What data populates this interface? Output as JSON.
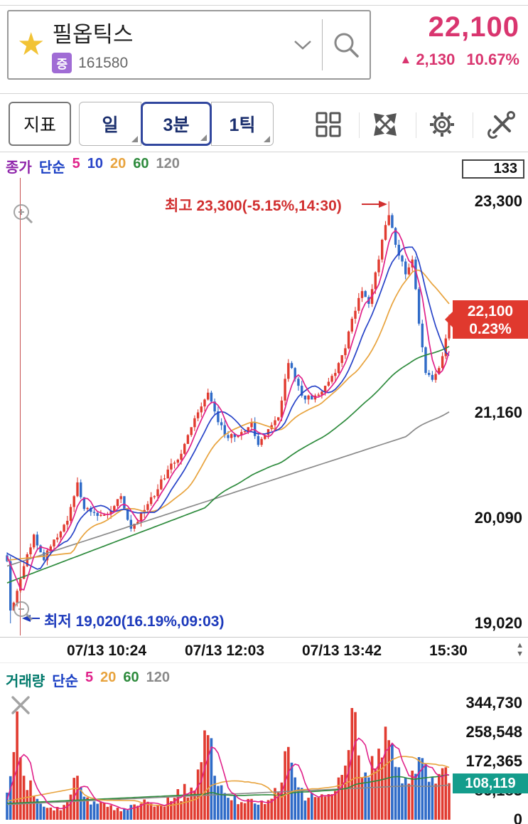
{
  "header": {
    "stock_name": "필옵틱스",
    "market_badge": "증",
    "stock_code": "161580",
    "price": "22,100",
    "change_arrow": "▲",
    "change_value": "2,130",
    "change_percent": "10.67%",
    "accent_color": "#d9356f"
  },
  "toolbar": {
    "indicator_button": "지표",
    "period_buttons": [
      {
        "label": "일",
        "selected": false
      },
      {
        "label": "3분",
        "selected": true
      },
      {
        "label": "1틱",
        "selected": false
      }
    ],
    "icons": [
      "grid-icon",
      "expand-icon",
      "gear-icon",
      "tools-icon"
    ]
  },
  "price_pane": {
    "legend": [
      {
        "text": "종가",
        "color": "#8e24aa"
      },
      {
        "text": "단순",
        "color": "#1a3fc4"
      },
      {
        "text": "5",
        "color": "#e0218a"
      },
      {
        "text": "10",
        "color": "#2743c8"
      },
      {
        "text": "20",
        "color": "#e8a33d"
      },
      {
        "text": "60",
        "color": "#2e8b3d"
      },
      {
        "text": "120",
        "color": "#8a8a8a"
      }
    ],
    "count_box": "133",
    "high_annotation": "최고 23,300(-5.15%,14:30)",
    "low_annotation": "최저 19,020(16.19%,09:03)",
    "high_color": "#d12f2f",
    "low_color": "#1c39bb",
    "axis_labels": [
      {
        "text": "23,300",
        "value": 23300
      },
      {
        "text": "21,160",
        "value": 21160
      },
      {
        "text": "20,090",
        "value": 20090
      },
      {
        "text": "19,020",
        "value": 19020
      }
    ],
    "current_badge": {
      "price": "22,100",
      "percent": "0.23%",
      "color": "#e0392e"
    }
  },
  "time_axis": {
    "labels": [
      "07/13 10:24",
      "07/13 12:03",
      "07/13 13:42",
      "15:30"
    ]
  },
  "volume_pane": {
    "legend": [
      {
        "text": "거래량",
        "color": "#00796b"
      },
      {
        "text": "단순",
        "color": "#1a3fc4"
      },
      {
        "text": "5",
        "color": "#e0218a"
      },
      {
        "text": "20",
        "color": "#e8a33d"
      },
      {
        "text": "60",
        "color": "#2e8b3d"
      },
      {
        "text": "120",
        "color": "#8a8a8a"
      }
    ],
    "axis_labels": [
      {
        "text": "344,730",
        "value": 344730
      },
      {
        "text": "258,548",
        "value": 258548
      },
      {
        "text": "172,365",
        "value": 172365
      },
      {
        "text": "86,183",
        "value": 86183
      },
      {
        "text": "0",
        "value": 0
      }
    ],
    "current_badge": {
      "value": "108,119",
      "color": "#149d8c"
    }
  },
  "chart_data": [
    {
      "type": "candlestick",
      "name": "필옵틱스 3분봉",
      "interval": "3분",
      "date": "07/13",
      "candle_count": 133,
      "y_max": 23300,
      "y_min": 19020,
      "y_ticks": [
        23300,
        21160,
        20090,
        19020
      ],
      "x_ticks": [
        "07/13 10:24",
        "07/13 12:03",
        "07/13 13:42",
        "15:30"
      ],
      "x_tick_indices": [
        28,
        61,
        94,
        130
      ],
      "current_price": 22100,
      "current_change_pct": 0.23,
      "session_high": {
        "price": 23300,
        "pct_vs_current": -5.15,
        "time": "14:30",
        "index": 114
      },
      "session_low": {
        "price": 19020,
        "pct_vs_current": 16.19,
        "time": "09:03",
        "index": 1
      },
      "up_color": "#e13b30",
      "down_color": "#2f6bc8",
      "close_anchors": [
        [
          0,
          19650
        ],
        [
          1,
          19150
        ],
        [
          3,
          19350
        ],
        [
          5,
          19600
        ],
        [
          8,
          19920
        ],
        [
          11,
          19660
        ],
        [
          14,
          19870
        ],
        [
          18,
          20060
        ],
        [
          21,
          20450
        ],
        [
          23,
          20180
        ],
        [
          27,
          20110
        ],
        [
          31,
          20160
        ],
        [
          34,
          20310
        ],
        [
          37,
          19980
        ],
        [
          41,
          20170
        ],
        [
          45,
          20380
        ],
        [
          48,
          20580
        ],
        [
          52,
          20740
        ],
        [
          55,
          21010
        ],
        [
          58,
          21220
        ],
        [
          60,
          21360
        ],
        [
          63,
          21060
        ],
        [
          66,
          20900
        ],
        [
          70,
          20960
        ],
        [
          73,
          21060
        ],
        [
          75,
          20830
        ],
        [
          78,
          20990
        ],
        [
          81,
          21110
        ],
        [
          84,
          21660
        ],
        [
          86,
          21500
        ],
        [
          88,
          21330
        ],
        [
          91,
          21290
        ],
        [
          95,
          21430
        ],
        [
          98,
          21560
        ],
        [
          101,
          21810
        ],
        [
          103,
          22110
        ],
        [
          106,
          22390
        ],
        [
          108,
          22260
        ],
        [
          111,
          22710
        ],
        [
          113,
          23060
        ],
        [
          114,
          23160
        ],
        [
          116,
          22860
        ],
        [
          119,
          22560
        ],
        [
          121,
          22710
        ],
        [
          123,
          22060
        ],
        [
          125,
          21560
        ],
        [
          127,
          21490
        ],
        [
          129,
          21610
        ],
        [
          131,
          21910
        ],
        [
          132,
          22100
        ]
      ],
      "ma": [
        {
          "period": 5,
          "color": "#e0218a",
          "left_start": 19700
        },
        {
          "period": 10,
          "color": "#2743c8",
          "left_start": 19730
        },
        {
          "period": 20,
          "color": "#e8a33d",
          "left_start": 19660
        },
        {
          "period": 60,
          "color": "#2e8b3d",
          "left_start": 19430
        },
        {
          "period": 120,
          "color": "#8a8a8a",
          "left_start": 19600
        }
      ]
    },
    {
      "type": "bar",
      "name": "거래량",
      "y_axis_max": 344730,
      "y_ticks": [
        344730,
        258548,
        172365,
        86183,
        0
      ],
      "current_volume": 108119,
      "volume_anchors": [
        [
          0,
          80000
        ],
        [
          2,
          200000
        ],
        [
          3,
          320000
        ],
        [
          5,
          130000
        ],
        [
          8,
          70000
        ],
        [
          12,
          35000
        ],
        [
          16,
          28000
        ],
        [
          21,
          130000
        ],
        [
          25,
          45000
        ],
        [
          30,
          38000
        ],
        [
          35,
          32000
        ],
        [
          40,
          48000
        ],
        [
          45,
          42000
        ],
        [
          50,
          65000
        ],
        [
          55,
          95000
        ],
        [
          58,
          170000
        ],
        [
          60,
          250000
        ],
        [
          62,
          130000
        ],
        [
          66,
          65000
        ],
        [
          70,
          52000
        ],
        [
          74,
          48000
        ],
        [
          78,
          58000
        ],
        [
          82,
          110000
        ],
        [
          84,
          215000
        ],
        [
          86,
          125000
        ],
        [
          90,
          65000
        ],
        [
          94,
          75000
        ],
        [
          98,
          85000
        ],
        [
          101,
          160000
        ],
        [
          103,
          330000
        ],
        [
          105,
          190000
        ],
        [
          108,
          125000
        ],
        [
          111,
          210000
        ],
        [
          113,
          275000
        ],
        [
          115,
          225000
        ],
        [
          117,
          155000
        ],
        [
          119,
          125000
        ],
        [
          121,
          145000
        ],
        [
          123,
          185000
        ],
        [
          125,
          165000
        ],
        [
          127,
          125000
        ],
        [
          129,
          135000
        ],
        [
          131,
          155000
        ],
        [
          132,
          108119
        ]
      ],
      "ma": [
        {
          "period": 5,
          "color": "#e0218a",
          "left_start": 60000
        },
        {
          "period": 20,
          "color": "#e8a33d",
          "left_start": 55000
        },
        {
          "period": 60,
          "color": "#2e8b3d",
          "left_start": 48000
        },
        {
          "period": 120,
          "color": "#8a8a8a",
          "left_start": 45000
        }
      ]
    }
  ]
}
